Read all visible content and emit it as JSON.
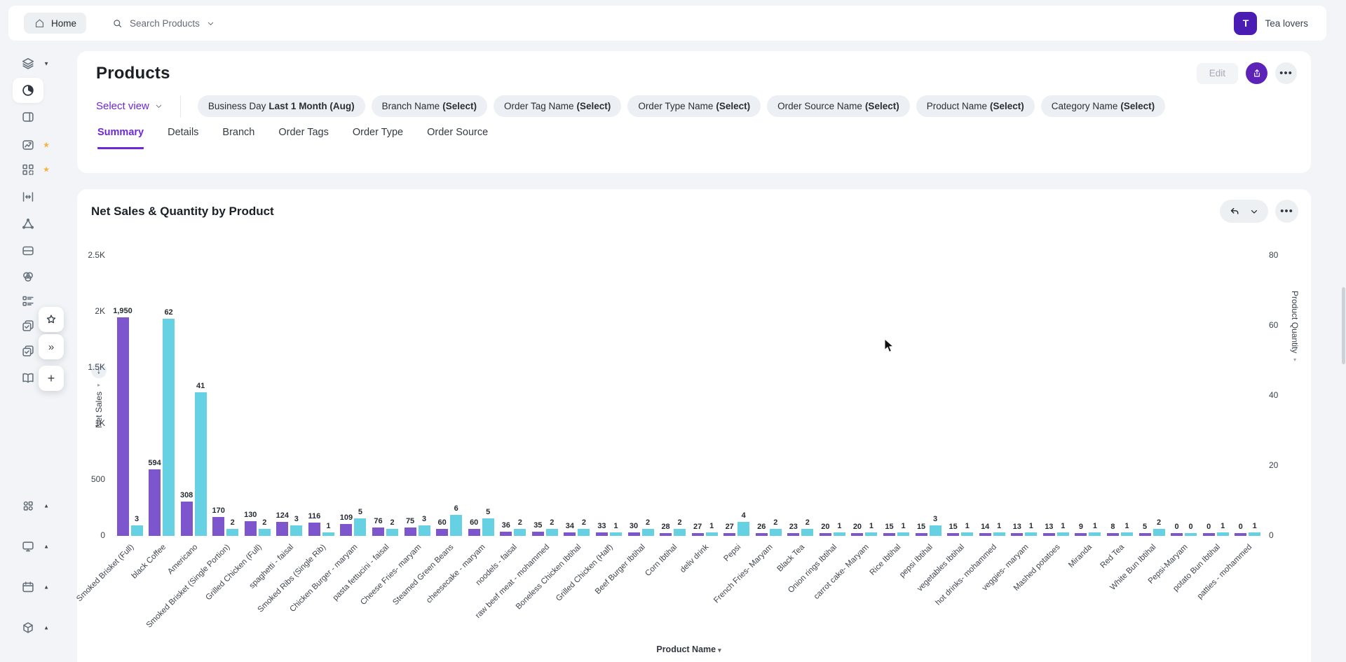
{
  "topbar": {
    "home_label": "Home",
    "search_label": "Search Products",
    "user_initial": "T",
    "user_name": "Tea lovers"
  },
  "page": {
    "title": "Products",
    "edit_label": "Edit",
    "select_view_label": "Select view"
  },
  "filters": [
    {
      "name": "Business Day",
      "value": "Last 1 Month (Aug)"
    },
    {
      "name": "Branch Name",
      "value": "(Select)"
    },
    {
      "name": "Order Tag Name",
      "value": "(Select)"
    },
    {
      "name": "Order Type Name",
      "value": "(Select)"
    },
    {
      "name": "Order Source Name",
      "value": "(Select)"
    },
    {
      "name": "Product Name",
      "value": "(Select)"
    },
    {
      "name": "Category Name",
      "value": "(Select)"
    }
  ],
  "tabs": [
    "Summary",
    "Details",
    "Branch",
    "Order Tags",
    "Order Type",
    "Order Source"
  ],
  "active_tab": "Summary",
  "sidebar": {
    "items": [
      {
        "icon": "layers",
        "caret": "down",
        "name": "workspace-switcher"
      },
      {
        "icon": "pie-chart",
        "active": true,
        "name": "dashboard"
      },
      {
        "icon": "panel",
        "name": "panels"
      },
      {
        "icon": "image",
        "starred": true,
        "name": "media"
      },
      {
        "icon": "flow",
        "starred": true,
        "name": "flows"
      },
      {
        "icon": "width",
        "name": "spacing"
      },
      {
        "icon": "prism",
        "name": "prism"
      },
      {
        "icon": "drawer",
        "name": "drawer"
      },
      {
        "icon": "venn",
        "name": "blend"
      },
      {
        "icon": "checklist",
        "name": "checklist"
      },
      {
        "icon": "pages-check",
        "name": "approved-copies"
      },
      {
        "icon": "pages-check",
        "name": "approved-copies-alt"
      },
      {
        "icon": "book",
        "name": "library"
      },
      {
        "icon": "cluster",
        "caret": "up",
        "name": "components-group"
      },
      {
        "icon": "monitor",
        "caret": "up",
        "name": "screens-group"
      },
      {
        "icon": "calendar",
        "caret": "up",
        "name": "schedule-group"
      },
      {
        "icon": "cube",
        "caret": "up",
        "name": "packages-group"
      }
    ],
    "floating": [
      {
        "icon": "star",
        "name": "favorite"
      },
      {
        "icon": "chevrons-right",
        "name": "expand"
      },
      {
        "icon": "plus",
        "name": "add"
      }
    ]
  },
  "chart_data": {
    "type": "bar",
    "title": "Net Sales & Quantity by Product",
    "xlabel": "Product Name",
    "grid": false,
    "legend": "none",
    "categories": [
      "Smoked Brisket (Full)",
      "black Coffee",
      "Americano",
      "Smoked Brisket (Single Portion)",
      "Grilled Chicken (Full)",
      "spaghetti - faisal",
      "Smoked Ribs (Single Rib)",
      "Chicken Burger - maryam",
      "pasta fettucini - faisal",
      "Cheese Fries- maryam",
      "Steamed Green Beans",
      "cheesecake - maryam",
      "noodels - faisal",
      "raw beef meat - mohammed",
      "Boneless Chicken Ibtihal",
      "Grilled Chicken (Half)",
      "Beef Burger Ibtihal",
      "Corn Ibtihal",
      "deliv drink",
      "Pepsi",
      "French Fries- Maryam",
      "Black Tea",
      "Onion rings Ibtihal",
      "carrot cake- Maryam",
      "Rice Ibtihal",
      "pepsi Ibtihal",
      "vegetables Ibtihal",
      "hot drinks- mohammed",
      "veggies- maryam",
      "Mashed potatoes",
      "Miranda",
      "Red Tea",
      "White Bun Ibtihal",
      "Pepsi-Maryam",
      "potato Bun Ibtihal",
      "patties - mohammed"
    ],
    "series": [
      {
        "name": "Net Sales",
        "axis": "left",
        "color": "#7d55cc",
        "values": [
          1950,
          594,
          308,
          170,
          130,
          124,
          116,
          109,
          76,
          75,
          60,
          60,
          36,
          35,
          34,
          33,
          30,
          28,
          27,
          27,
          26,
          23,
          20,
          20,
          15,
          15,
          15,
          14,
          13,
          13,
          9,
          8,
          5,
          0,
          0,
          0
        ],
        "value_labels": [
          "1,950",
          "594",
          "308",
          "170",
          "130",
          "124",
          "116",
          "109",
          "76",
          "75",
          "60",
          "60",
          "36",
          "35",
          "34",
          "33",
          "30",
          "28",
          "27",
          "27",
          "26",
          "23",
          "20",
          "20",
          "15",
          "15",
          "15",
          "14",
          "13",
          "13",
          "9",
          "8",
          "5",
          "0",
          "0",
          "0"
        ]
      },
      {
        "name": "Product Quantity",
        "axis": "right",
        "color": "#67d1e4",
        "values": [
          3,
          62,
          41,
          2,
          2,
          3,
          1,
          5,
          2,
          3,
          6,
          5,
          2,
          2,
          2,
          1,
          2,
          2,
          1,
          4,
          2,
          2,
          1,
          1,
          1,
          3,
          1,
          1,
          1,
          1,
          1,
          1,
          2,
          0,
          1,
          1
        ]
      }
    ],
    "left_axis": {
      "label": "Net Sales",
      "max": 2500,
      "ticks": [
        "2.5K",
        "2K",
        "1.5K",
        "1K",
        "500",
        "0"
      ]
    },
    "right_axis": {
      "label": "Product Quantity",
      "max": 80,
      "ticks": [
        "80",
        "60",
        "40",
        "20",
        "0"
      ]
    }
  },
  "colors": {
    "accent": "#6d28d9",
    "avatar": "#4b1cb3",
    "share_button": "#5d23b8",
    "bar_net_sales": "#7d55cc",
    "bar_quantity": "#67d1e4"
  }
}
